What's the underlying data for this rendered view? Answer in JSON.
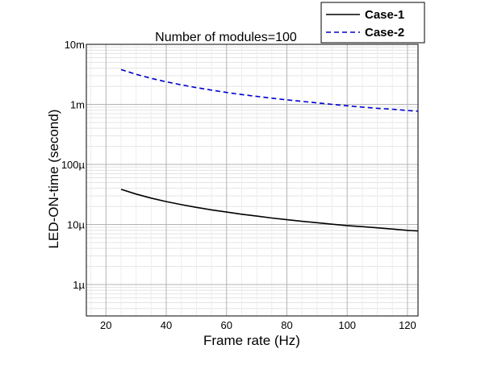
{
  "chart_data": {
    "type": "line",
    "title": "Number of modules=100",
    "xlabel": "Frame rate (Hz)",
    "ylabel": "LED-ON-time (second)",
    "xlim": [
      13.5,
      123.5
    ],
    "ylim": [
      3e-07,
      0.01
    ],
    "yscale": "log",
    "grid": true,
    "legend_position": "top-right",
    "x_ticks": [
      20,
      40,
      60,
      80,
      100,
      120
    ],
    "x_tick_labels": [
      "20",
      "40",
      "60",
      "80",
      "100",
      "120"
    ],
    "y_ticks": [
      1e-06,
      1e-05,
      0.0001,
      0.001,
      0.01
    ],
    "y_tick_labels": [
      "1µ",
      "10µ",
      "100µ",
      "1m",
      "10m"
    ],
    "series": [
      {
        "name": "Case-1",
        "color": "#000000",
        "style": "solid",
        "x": [
          25,
          30,
          35,
          40,
          45,
          50,
          55,
          60,
          65,
          70,
          75,
          80,
          85,
          90,
          95,
          100,
          105,
          110,
          115,
          120,
          123.5
        ],
        "y": [
          3.85e-05,
          3.21e-05,
          2.75e-05,
          2.41e-05,
          2.14e-05,
          1.93e-05,
          1.75e-05,
          1.61e-05,
          1.48e-05,
          1.38e-05,
          1.28e-05,
          1.2e-05,
          1.13e-05,
          1.07e-05,
          1.01e-05,
          9.6e-06,
          9.2e-06,
          8.8e-06,
          8.4e-06,
          8e-06,
          7.8e-06
        ]
      },
      {
        "name": "Case-2",
        "color": "#0000cc",
        "style": "dashed",
        "x": [
          25,
          30,
          35,
          40,
          45,
          50,
          55,
          60,
          65,
          70,
          75,
          80,
          85,
          90,
          95,
          100,
          105,
          110,
          115,
          120,
          123.5
        ],
        "y": [
          0.0038,
          0.00317,
          0.00271,
          0.00238,
          0.00211,
          0.0019,
          0.00173,
          0.00158,
          0.00146,
          0.00136,
          0.00127,
          0.00119,
          0.00112,
          0.00106,
          0.001,
          0.00095,
          0.0009,
          0.00086,
          0.00083,
          0.00079,
          0.00077
        ]
      }
    ]
  }
}
